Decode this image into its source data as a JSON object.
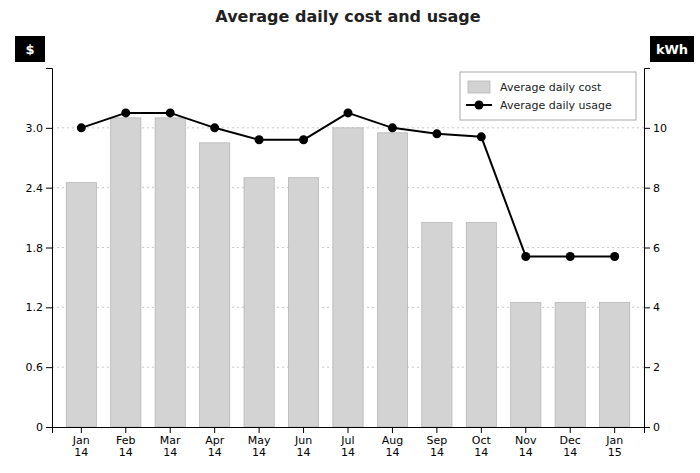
{
  "chart_data": {
    "type": "bar",
    "title": "Average daily cost and usage",
    "categories": [
      "Jan\n14",
      "Feb\n14",
      "Mar\n14",
      "Apr\n14",
      "May\n14",
      "Jun\n14",
      "Jul\n14",
      "Aug\n14",
      "Sep\n14",
      "Oct\n14",
      "Nov\n14",
      "Dec\n14",
      "Jan\n15"
    ],
    "series": [
      {
        "name": "Average daily cost",
        "type": "bar",
        "color": "#d3d3d3",
        "values": [
          2.45,
          3.1,
          3.1,
          2.85,
          2.5,
          2.5,
          3.0,
          2.95,
          2.05,
          2.05,
          1.25,
          1.25,
          1.25
        ]
      },
      {
        "name": "Average daily usage",
        "type": "line",
        "axis": "y2",
        "color": "#000000",
        "marker": "circle",
        "values": [
          10.0,
          10.5,
          10.5,
          10.0,
          9.6,
          9.6,
          10.5,
          10.0,
          9.8,
          9.7,
          5.7,
          5.7,
          5.7
        ]
      }
    ],
    "ylabel": "$",
    "y2label": "kWh",
    "ylim": [
      0,
      3.6
    ],
    "yticks": [
      0,
      0.6,
      1.2,
      1.8,
      2.4,
      {
        "value": 3,
        "label": "3.0"
      }
    ],
    "y2lim": [
      0,
      12
    ],
    "y2ticks": [
      0,
      2,
      4,
      6,
      8,
      10
    ],
    "grid": true,
    "legend": "upper right"
  }
}
